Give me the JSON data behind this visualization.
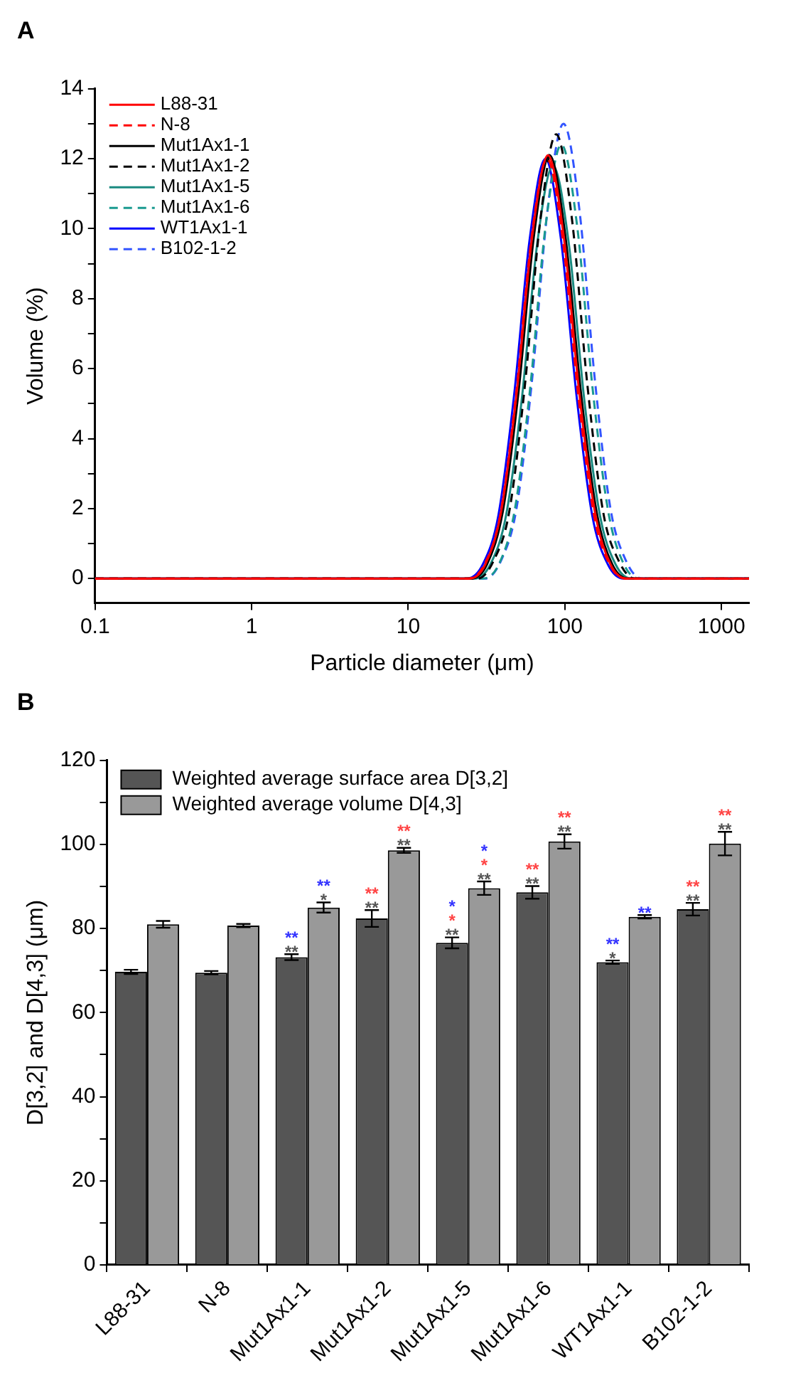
{
  "chart_data": [
    {
      "type": "line",
      "title": "A",
      "xlabel": "Particle diameter (μm)",
      "ylabel": "Volume (%)",
      "log": "x",
      "xlim": [
        0.1,
        1500
      ],
      "xticks": [
        0.1,
        1,
        10,
        100,
        1000
      ],
      "ylim": [
        -0.7,
        14
      ],
      "yticks": [
        0,
        {
          "value": 1,
          "label": null
        },
        2,
        {
          "value": 3,
          "label": null
        },
        4,
        {
          "value": 5,
          "label": null
        },
        6,
        {
          "value": 7,
          "label": null
        },
        8,
        {
          "value": 9,
          "label": null
        },
        10,
        {
          "value": 11,
          "label": null
        },
        12,
        {
          "value": 13,
          "label": null
        },
        14
      ],
      "grid": false,
      "legend": "top left",
      "marker": "none",
      "series": [
        {
          "name": "L88-31",
          "color": "#ff0000",
          "line_style": "solid",
          "x": [
            0.1,
            24.6,
            31.0,
            39.1,
            49.2,
            61.9,
            78,
            98.2,
            123.6,
            155.6,
            195.9,
            246.6,
            1500
          ],
          "values": [
            0,
            0,
            0.4,
            1.9,
            5.3,
            9.8,
            12.1,
            9.8,
            5.3,
            1.9,
            0.4,
            0,
            0
          ]
        },
        {
          "name": "N-8",
          "color": "#ff0000",
          "line_style": "dashed",
          "x": [
            0.1,
            24.3,
            30.6,
            38.6,
            48.6,
            61.1,
            77,
            96.9,
            122.0,
            153.6,
            193.4,
            243.5,
            1500
          ],
          "values": [
            0,
            0,
            0.4,
            1.8,
            5.2,
            9.7,
            12.0,
            9.7,
            5.2,
            1.8,
            0.4,
            0,
            0
          ]
        },
        {
          "name": "Mut1Ax1-1",
          "color": "#000000",
          "line_style": "solid",
          "x": [
            0.1,
            25.3,
            31.8,
            40.1,
            50.5,
            63.5,
            80,
            100.7,
            126.8,
            159.6,
            201.0,
            253.0,
            1500
          ],
          "values": [
            0,
            0,
            0.4,
            1.9,
            5.3,
            9.8,
            12.1,
            9.8,
            5.3,
            1.9,
            0.4,
            0,
            0
          ]
        },
        {
          "name": "Mut1Ax1-2",
          "color": "#000000",
          "line_style": "dashed",
          "x": [
            0.1,
            27.8,
            35.0,
            44.1,
            55.5,
            69.9,
            88,
            110.8,
            139.5,
            175.6,
            221.1,
            278.3,
            1500
          ],
          "values": [
            0,
            0,
            0.5,
            1.9,
            5.5,
            10.3,
            12.7,
            10.3,
            5.5,
            1.9,
            0.5,
            0,
            0
          ]
        },
        {
          "name": "Mut1Ax1-5",
          "color": "#1a8a80",
          "line_style": "solid",
          "x": [
            0.1,
            26.5,
            33.4,
            42.1,
            53.0,
            66.7,
            84,
            105.8,
            133.1,
            167.6,
            211.0,
            265.6,
            1500
          ],
          "values": [
            0,
            0,
            0.4,
            1.8,
            5.1,
            9.6,
            11.8,
            9.6,
            5.1,
            1.8,
            0.4,
            0,
            0
          ]
        },
        {
          "name": "Mut1Ax1-6",
          "color": "#1a9a90",
          "line_style": "dashed",
          "x": [
            0.1,
            30.0,
            37.8,
            47.6,
            59.9,
            75.4,
            95,
            119.6,
            150.6,
            189.5,
            238.6,
            300.4,
            1500
          ],
          "values": [
            0,
            0,
            0.4,
            1.9,
            5.4,
            10.1,
            12.4,
            10.1,
            5.4,
            1.9,
            0.4,
            0,
            0
          ]
        },
        {
          "name": "WT1Ax1-1",
          "color": "#0000ff",
          "line_style": "solid",
          "x": [
            0.1,
            23.7,
            29.9,
            37.6,
            47.3,
            59.6,
            75,
            94.4,
            118.9,
            149.6,
            188.4,
            237.2,
            1500
          ],
          "values": [
            0,
            0,
            0.4,
            1.8,
            5.2,
            9.7,
            12.0,
            9.7,
            5.2,
            1.8,
            0.4,
            0,
            0
          ]
        },
        {
          "name": "B102-1-2",
          "color": "#3355ff",
          "line_style": "dashed",
          "x": [
            0.1,
            31.0,
            39.0,
            49.1,
            61.8,
            77.8,
            98,
            123.4,
            155.3,
            195.5,
            246.2,
            309.9,
            1500
          ],
          "values": [
            0,
            0,
            0.5,
            2.0,
            5.7,
            10.6,
            13.0,
            10.6,
            5.7,
            2.0,
            0.5,
            0,
            0
          ]
        }
      ]
    },
    {
      "type": "bar",
      "title": "B",
      "ylabel": "D[3,2] and D[4,3] (μm)",
      "categories": [
        "L88-31",
        "N-8",
        "Mut1Ax1-1",
        "Mut1Ax1-2",
        "Mut1Ax1-5",
        "Mut1Ax1-6",
        "WT1Ax1-1",
        "B102-1-2"
      ],
      "ylim": [
        0,
        120
      ],
      "yticks": [
        0,
        {
          "value": 10,
          "label": null
        },
        20,
        {
          "value": 30,
          "label": null
        },
        40,
        {
          "value": 50,
          "label": null
        },
        60,
        {
          "value": 70,
          "label": null
        },
        80,
        {
          "value": 90,
          "label": null
        },
        100,
        {
          "value": 110,
          "label": null
        },
        120
      ],
      "grid": false,
      "legend": "top left",
      "series": [
        {
          "name": "Weighted average surface area D[3,2]",
          "color": "#555555",
          "values": [
            69.7,
            69.5,
            73.2,
            82.4,
            76.6,
            88.6,
            72.0,
            84.6
          ],
          "errors": [
            0.5,
            0.4,
            0.7,
            2.0,
            1.3,
            1.5,
            0.4,
            1.5
          ],
          "value_labels": [
            null,
            null,
            "**\n**",
            "**\n**",
            "*\n*\n**",
            "**\n**",
            "**\n*",
            "**\n**"
          ]
        },
        {
          "name": "Weighted average volume D[4,3]",
          "color": "#999999",
          "values": [
            81.0,
            80.7,
            85.0,
            98.6,
            89.6,
            100.7,
            82.8,
            100.2
          ],
          "errors": [
            0.8,
            0.4,
            1.2,
            0.6,
            1.6,
            1.7,
            0.4,
            2.8
          ],
          "value_labels": [
            null,
            null,
            "**\n*",
            "**\n**",
            "*\n*\n**",
            "**\n**",
            "**",
            "**\n**"
          ]
        }
      ]
    }
  ]
}
